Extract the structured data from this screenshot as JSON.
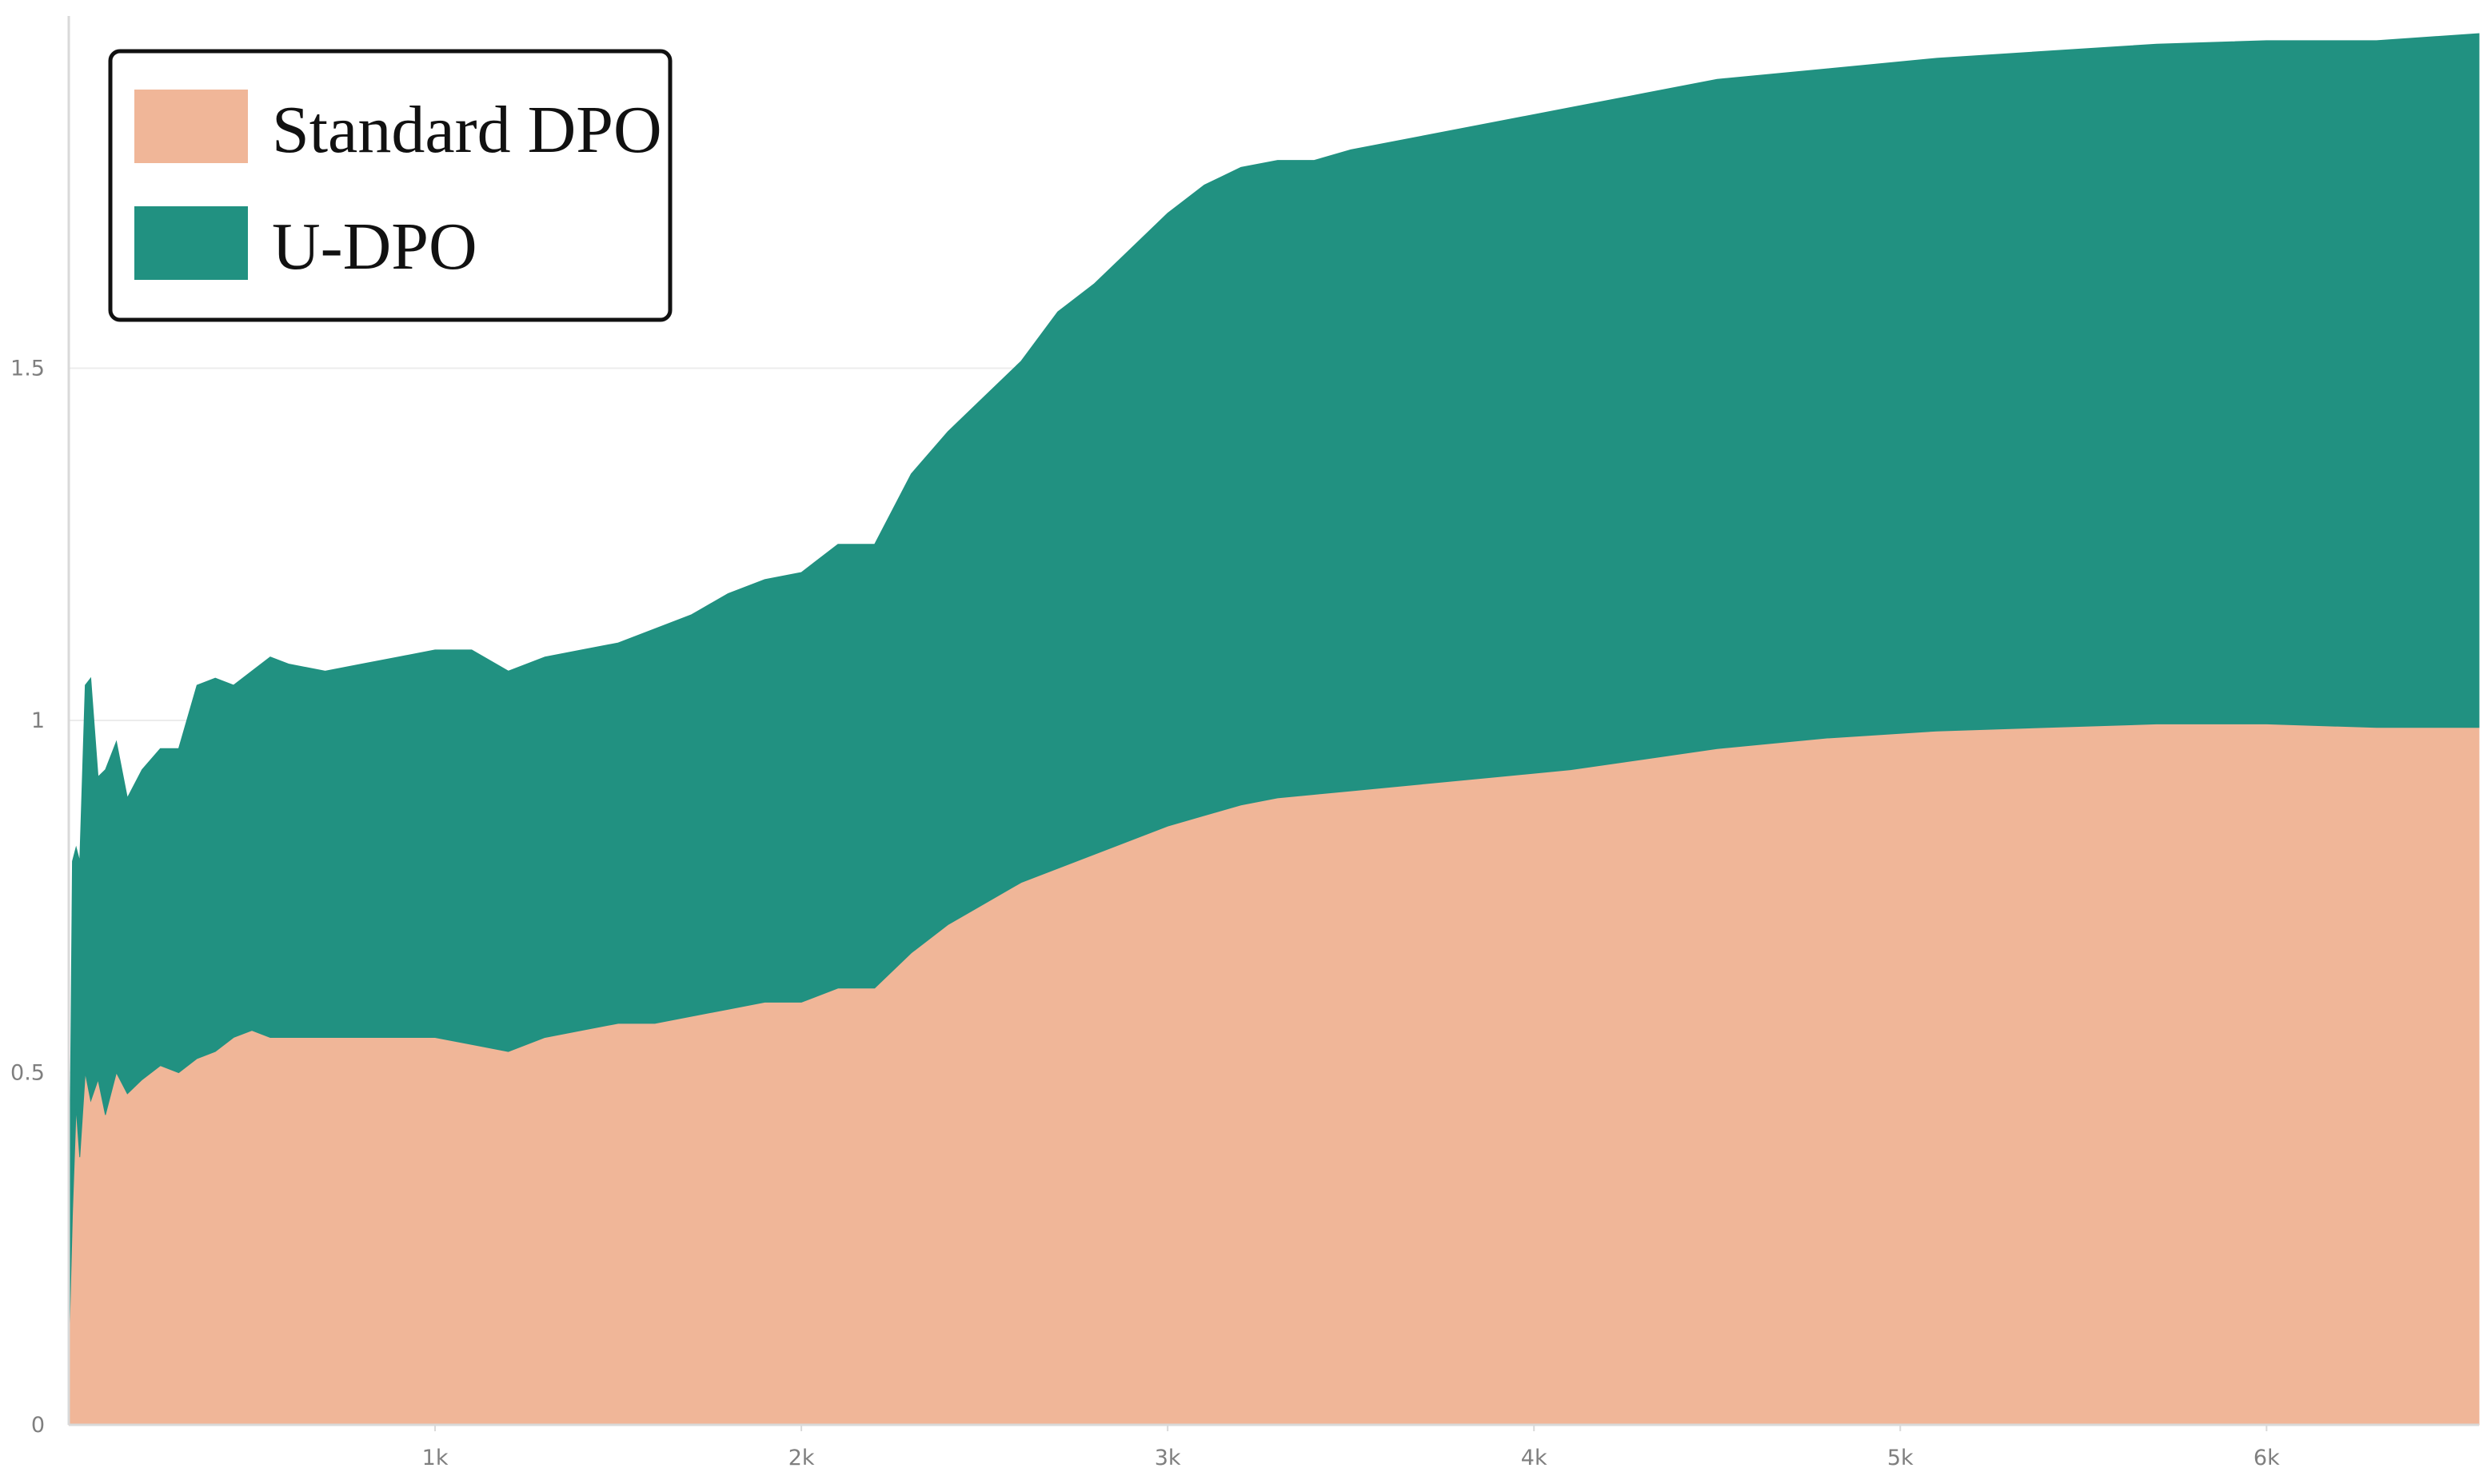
{
  "chart_data": {
    "type": "area",
    "stacked": true,
    "title": "",
    "xlabel": "",
    "ylabel": "",
    "xlim": [
      0,
      6580
    ],
    "ylim": [
      0,
      2.0
    ],
    "grid": "horizontal",
    "legend": {
      "placement": "top-left",
      "boxed": true
    },
    "x_ticks": [
      {
        "value": 1000,
        "label": "1k"
      },
      {
        "value": 2000,
        "label": "2k"
      },
      {
        "value": 3000,
        "label": "3k"
      },
      {
        "value": 4000,
        "label": "4k"
      },
      {
        "value": 5000,
        "label": "5k"
      },
      {
        "value": 6000,
        "label": "6k"
      }
    ],
    "y_ticks": [
      {
        "value": 0,
        "label": "0"
      },
      {
        "value": 0.5,
        "label": "0.5"
      },
      {
        "value": 1,
        "label": "1"
      },
      {
        "value": 1.5,
        "label": "1.5"
      }
    ],
    "x": [
      0,
      10,
      20,
      30,
      45,
      60,
      80,
      100,
      130,
      160,
      200,
      250,
      300,
      350,
      400,
      450,
      500,
      550,
      600,
      700,
      800,
      900,
      1000,
      1100,
      1200,
      1300,
      1400,
      1500,
      1600,
      1700,
      1800,
      1900,
      2000,
      2100,
      2200,
      2300,
      2400,
      2500,
      2600,
      2700,
      2800,
      2900,
      3000,
      3100,
      3200,
      3300,
      3400,
      3500,
      3700,
      3900,
      4100,
      4300,
      4500,
      4800,
      5100,
      5400,
      5700,
      6000,
      6300,
      6580
    ],
    "series": [
      {
        "name": "Standard DPO",
        "color": "#f0b698",
        "values": [
          0.1,
          0.3,
          0.45,
          0.38,
          0.5,
          0.46,
          0.49,
          0.44,
          0.5,
          0.47,
          0.49,
          0.51,
          0.5,
          0.52,
          0.53,
          0.55,
          0.56,
          0.55,
          0.55,
          0.55,
          0.55,
          0.55,
          0.55,
          0.54,
          0.53,
          0.55,
          0.56,
          0.57,
          0.57,
          0.58,
          0.59,
          0.6,
          0.6,
          0.62,
          0.62,
          0.67,
          0.71,
          0.74,
          0.77,
          0.79,
          0.81,
          0.83,
          0.85,
          0.865,
          0.88,
          0.89,
          0.895,
          0.9,
          0.91,
          0.92,
          0.93,
          0.945,
          0.96,
          0.975,
          0.985,
          0.99,
          0.995,
          0.995,
          0.99,
          0.99
        ]
      },
      {
        "name": "U-DPO",
        "color": "#219181",
        "values": [
          0.1,
          0.5,
          0.37,
          0.42,
          0.55,
          0.6,
          0.43,
          0.49,
          0.47,
          0.42,
          0.44,
          0.45,
          0.46,
          0.53,
          0.53,
          0.5,
          0.51,
          0.54,
          0.53,
          0.52,
          0.53,
          0.54,
          0.55,
          0.56,
          0.54,
          0.54,
          0.54,
          0.54,
          0.56,
          0.57,
          0.59,
          0.6,
          0.61,
          0.63,
          0.63,
          0.68,
          0.7,
          0.72,
          0.74,
          0.79,
          0.81,
          0.84,
          0.87,
          0.895,
          0.905,
          0.905,
          0.9,
          0.91,
          0.92,
          0.93,
          0.94,
          0.945,
          0.95,
          0.95,
          0.955,
          0.96,
          0.965,
          0.97,
          0.975,
          0.985
        ]
      }
    ]
  },
  "legend": {
    "items": [
      {
        "label": "Standard DPO",
        "color": "#f0b698"
      },
      {
        "label": "U-DPO",
        "color": "#219181"
      }
    ]
  },
  "colors": {
    "axis": "#d9d9d9",
    "grid": "#ececec",
    "tick_text": "#7f7f7f"
  }
}
